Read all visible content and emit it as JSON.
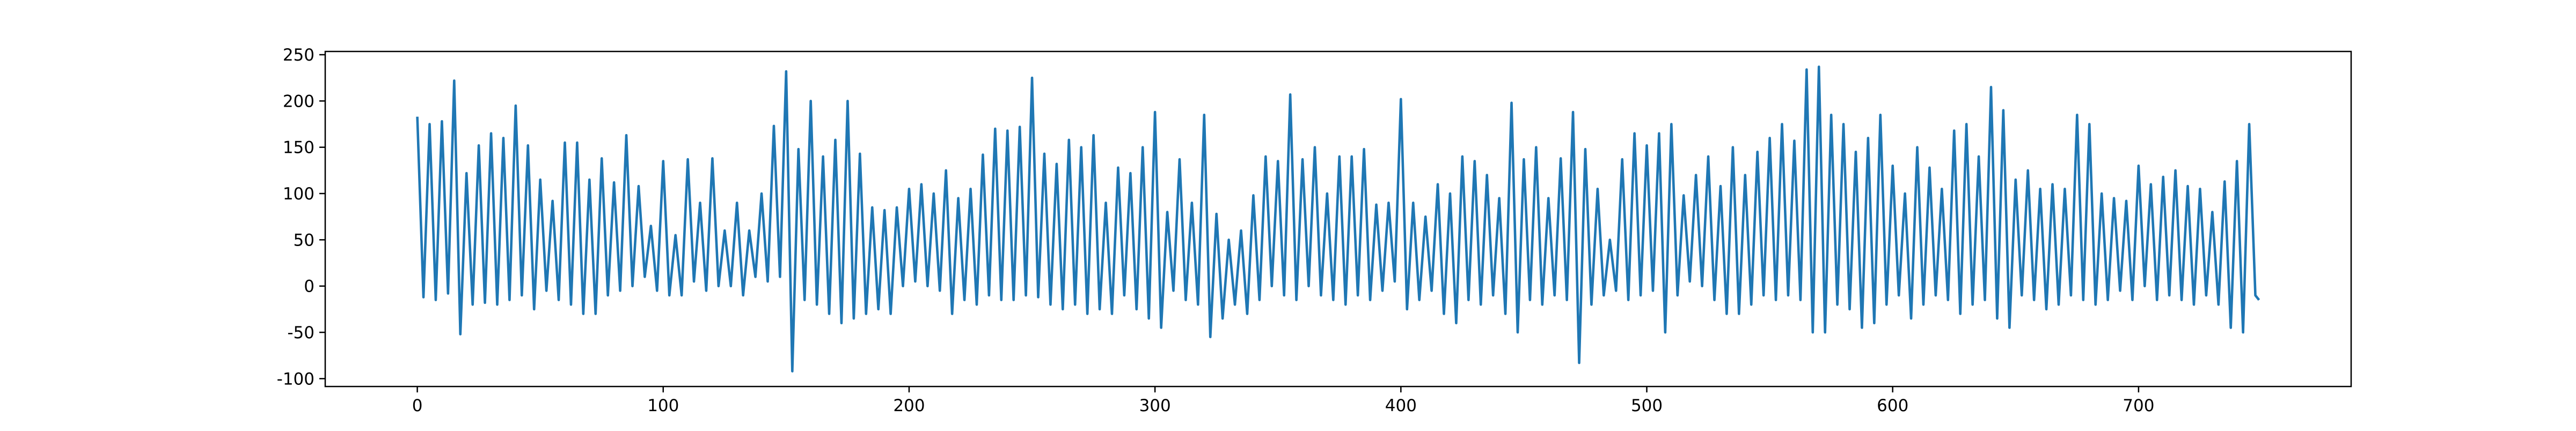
{
  "chart_data": {
    "type": "line",
    "x": [
      0,
      2.5,
      5,
      7.5,
      10,
      12.5,
      15,
      17.5,
      20,
      22.5,
      25,
      27.5,
      30,
      32.5,
      35,
      37.5,
      40,
      42.5,
      45,
      47.5,
      50,
      52.5,
      55,
      57.5,
      60,
      62.5,
      65,
      67.5,
      70,
      72.5,
      75,
      77.5,
      80,
      82.5,
      85,
      87.5,
      90,
      92.5,
      95,
      97.5,
      100,
      102.5,
      105,
      107.5,
      110,
      112.5,
      115,
      117.5,
      120,
      122.5,
      125,
      127.5,
      130,
      132.5,
      135,
      137.5,
      140,
      142.5,
      145,
      147.5,
      150,
      152.5,
      155,
      157.5,
      160,
      162.5,
      165,
      167.5,
      170,
      172.5,
      175,
      177.5,
      180,
      182.5,
      185,
      187.5,
      190,
      192.5,
      195,
      197.5,
      200,
      202.5,
      205,
      207.5,
      210,
      212.5,
      215,
      217.5,
      220,
      222.5,
      225,
      227.5,
      230,
      232.5,
      235,
      237.5,
      240,
      242.5,
      245,
      247.5,
      250,
      252.5,
      255,
      257.5,
      260,
      262.5,
      265,
      267.5,
      270,
      272.5,
      275,
      277.5,
      280,
      282.5,
      285,
      287.5,
      290,
      292.5,
      295,
      297.5,
      300,
      302.5,
      305,
      307.5,
      310,
      312.5,
      315,
      317.5,
      320,
      322.5,
      325,
      327.5,
      330,
      332.5,
      335,
      337.5,
      340,
      342.5,
      345,
      347.5,
      350,
      352.5,
      355,
      357.5,
      360,
      362.5,
      365,
      367.5,
      370,
      372.5,
      375,
      377.5,
      380,
      382.5,
      385,
      387.5,
      390,
      392.5,
      395,
      397.5,
      400,
      402.5,
      405,
      407.5,
      410,
      412.5,
      415,
      417.5,
      420,
      422.5,
      425,
      427.5,
      430,
      432.5,
      435,
      437.5,
      440,
      442.5,
      445,
      447.5,
      450,
      452.5,
      455,
      457.5,
      460,
      462.5,
      465,
      467.5,
      470,
      472.5,
      475,
      477.5,
      480,
      482.5,
      485,
      487.5,
      490,
      492.5,
      495,
      497.5,
      500,
      502.5,
      505,
      507.5,
      510,
      512.5,
      515,
      517.5,
      520,
      522.5,
      525,
      527.5,
      530,
      532.5,
      535,
      537.5,
      540,
      542.5,
      545,
      547.5,
      550,
      552.5,
      555,
      557.5,
      560,
      562.5,
      565,
      567.5,
      570,
      572.5,
      575,
      577.5,
      580,
      582.5,
      585,
      587.5,
      590,
      592.5,
      595,
      597.5,
      600,
      602.5,
      605,
      607.5,
      610,
      612.5,
      615,
      617.5,
      620,
      622.5,
      625,
      627.5,
      630,
      632.5,
      635,
      637.5,
      640,
      642.5,
      645,
      647.5,
      650,
      652.5,
      655,
      657.5,
      660,
      662.5,
      665,
      667.5,
      670,
      672.5,
      675,
      677.5,
      680,
      682.5,
      685,
      687.5,
      690,
      692.5,
      695,
      697.5,
      700,
      702.5,
      705,
      707.5,
      710,
      712.5,
      715,
      717.5,
      720,
      722.5,
      725,
      727.5,
      730,
      732.5,
      735,
      737.5,
      740,
      742.5,
      745,
      747.5,
      749
    ],
    "series": [
      {
        "color": "#1f77b4",
        "values": [
          183,
          -12,
          175,
          -15,
          178,
          -8,
          222,
          -52,
          122,
          -20,
          152,
          -18,
          165,
          -20,
          160,
          -15,
          195,
          -10,
          152,
          -25,
          115,
          -5,
          92,
          -15,
          155,
          -20,
          155,
          -30,
          115,
          -30,
          138,
          -10,
          112,
          -5,
          163,
          0,
          108,
          10,
          65,
          -5,
          135,
          -10,
          55,
          -10,
          137,
          5,
          90,
          -5,
          138,
          0,
          60,
          0,
          90,
          -10,
          60,
          10,
          100,
          5,
          173,
          10,
          232,
          -92,
          148,
          -15,
          200,
          -20,
          140,
          -30,
          158,
          -40,
          200,
          -35,
          143,
          -30,
          85,
          -25,
          82,
          -30,
          85,
          0,
          105,
          5,
          110,
          0,
          100,
          -5,
          125,
          -30,
          95,
          -15,
          105,
          -20,
          142,
          -10,
          170,
          -15,
          168,
          -15,
          172,
          -10,
          225,
          -12,
          143,
          -20,
          132,
          -25,
          158,
          -20,
          150,
          -30,
          163,
          -25,
          90,
          -30,
          128,
          -10,
          122,
          -25,
          150,
          -35,
          188,
          -45,
          80,
          -5,
          137,
          -15,
          90,
          -20,
          185,
          -55,
          78,
          -35,
          50,
          -20,
          60,
          -30,
          98,
          -15,
          140,
          0,
          135,
          -10,
          207,
          -15,
          137,
          0,
          150,
          -10,
          100,
          -15,
          140,
          -20,
          140,
          -10,
          148,
          -15,
          88,
          -5,
          90,
          5,
          202,
          -25,
          90,
          -15,
          75,
          -5,
          110,
          -30,
          100,
          -40,
          140,
          -15,
          135,
          -20,
          120,
          -10,
          95,
          -30,
          198,
          -50,
          137,
          -15,
          150,
          -20,
          95,
          -10,
          138,
          -15,
          188,
          -83,
          148,
          -20,
          105,
          -10,
          50,
          -5,
          137,
          -15,
          165,
          -10,
          152,
          -5,
          165,
          -50,
          175,
          -10,
          98,
          5,
          120,
          0,
          140,
          -15,
          108,
          -30,
          150,
          -30,
          120,
          -20,
          145,
          -10,
          160,
          -15,
          175,
          -10,
          157,
          -15,
          234,
          -50,
          237,
          -50,
          185,
          -20,
          175,
          -25,
          145,
          -45,
          160,
          -40,
          185,
          -20,
          130,
          -10,
          100,
          -35,
          150,
          -20,
          128,
          -10,
          105,
          -15,
          168,
          -30,
          175,
          -20,
          140,
          -15,
          215,
          -35,
          190,
          -45,
          115,
          -10,
          125,
          -15,
          105,
          -25,
          110,
          -20,
          105,
          -10,
          185,
          -15,
          175,
          -20,
          100,
          -15,
          95,
          -5,
          92,
          -15,
          130,
          0,
          110,
          -15,
          118,
          -10,
          125,
          -15,
          108,
          -20,
          105,
          -10,
          80,
          -20,
          113,
          -45,
          135,
          -50,
          175,
          -10,
          -15
        ]
      }
    ],
    "xlim": [
      -37.45,
      786.45
    ],
    "ylim": [
      -108.5,
      253.5
    ],
    "xticks": [
      0,
      100,
      200,
      300,
      400,
      500,
      600,
      700
    ],
    "yticks": [
      -100,
      -50,
      0,
      50,
      100,
      150,
      200,
      250
    ]
  }
}
